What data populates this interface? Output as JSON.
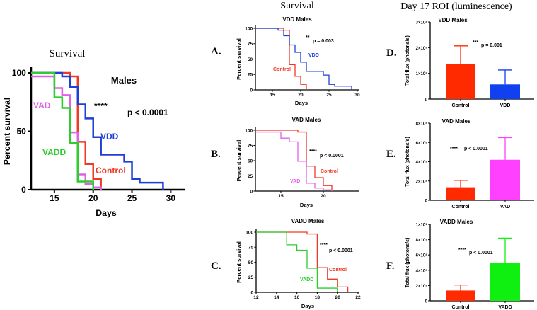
{
  "headers": {
    "left": "Survival",
    "middle": "Survival",
    "right": "Day 17 ROI (luminescence)"
  },
  "panel_letters": [
    "A.",
    "B.",
    "C.",
    "D.",
    "E.",
    "F."
  ],
  "chart_data": [
    {
      "id": "main",
      "type": "line",
      "step": true,
      "title": "Males",
      "xlabel": "Days",
      "ylabel": "Percent survival",
      "xlim": [
        12,
        31.7
      ],
      "ylim": [
        0,
        100
      ],
      "xticks": [
        15,
        20,
        25,
        30
      ],
      "yticks": [
        0,
        50,
        100
      ],
      "stars": "****",
      "pvalue": "p < 0.0001",
      "series": [
        {
          "name": "Control",
          "color": "#ee3a24",
          "points": [
            [
              12,
              100
            ],
            [
              17,
              97
            ],
            [
              18,
              41
            ],
            [
              19,
              22
            ],
            [
              20,
              9
            ],
            [
              21,
              0
            ]
          ]
        },
        {
          "name": "VDD",
          "color": "#1f3fd6",
          "points": [
            [
              12,
              100
            ],
            [
              16,
              97
            ],
            [
              17,
              88
            ],
            [
              18,
              73
            ],
            [
              19,
              61
            ],
            [
              20,
              45
            ],
            [
              21,
              30
            ],
            [
              24,
              24
            ],
            [
              25,
              9
            ],
            [
              26,
              6
            ],
            [
              29,
              0
            ]
          ]
        },
        {
          "name": "VAD",
          "color": "#e060e8",
          "points": [
            [
              12,
              97
            ],
            [
              15,
              87
            ],
            [
              16,
              81
            ],
            [
              17,
              49
            ],
            [
              18,
              13
            ],
            [
              19,
              5
            ],
            [
              20,
              2
            ],
            [
              21,
              0
            ]
          ]
        },
        {
          "name": "VADD",
          "color": "#2ecc2e",
          "points": [
            [
              12,
              100
            ],
            [
              15,
              79
            ],
            [
              16,
              70
            ],
            [
              17,
              40
            ],
            [
              18,
              7
            ],
            [
              20,
              0
            ]
          ]
        }
      ]
    },
    {
      "id": "A",
      "type": "line",
      "step": true,
      "title": "VDD Males",
      "xlabel": "Days",
      "ylabel": "Percent survival",
      "xlim": [
        12,
        30
      ],
      "ylim": [
        0,
        100
      ],
      "xticks": [
        15,
        20,
        25,
        30
      ],
      "yticks": [
        0,
        25,
        50,
        75,
        100
      ],
      "stars": "**",
      "pvalue": "p = 0.003",
      "series": [
        {
          "name": "Control",
          "color": "#ee3a24",
          "points": [
            [
              12,
              100
            ],
            [
              17,
              97
            ],
            [
              18,
              41
            ],
            [
              19,
              22
            ],
            [
              20,
              9
            ],
            [
              21,
              0
            ]
          ]
        },
        {
          "name": "VDD",
          "color": "#1f3fd6",
          "points": [
            [
              12,
              100
            ],
            [
              16,
              97
            ],
            [
              17,
              88
            ],
            [
              18,
              73
            ],
            [
              19,
              61
            ],
            [
              20,
              45
            ],
            [
              21,
              30
            ],
            [
              24,
              24
            ],
            [
              25,
              9
            ],
            [
              26,
              6
            ],
            [
              29,
              0
            ]
          ]
        }
      ]
    },
    {
      "id": "B",
      "type": "line",
      "step": true,
      "title": "VAD Males",
      "xlabel": "Days",
      "ylabel": "Percent survival",
      "xlim": [
        12,
        24
      ],
      "ylim": [
        0,
        100
      ],
      "xticks": [
        15,
        20
      ],
      "yticks": [
        0,
        25,
        50,
        75,
        100
      ],
      "stars": "****",
      "pvalue": "p < 0.0001",
      "series": [
        {
          "name": "Control",
          "color": "#ee3a24",
          "points": [
            [
              12,
              100
            ],
            [
              17,
              97
            ],
            [
              18,
              41
            ],
            [
              19,
              22
            ],
            [
              20,
              9
            ],
            [
              21,
              0
            ]
          ]
        },
        {
          "name": "VAD",
          "color": "#e060e8",
          "points": [
            [
              12,
              97
            ],
            [
              15,
              87
            ],
            [
              16,
              81
            ],
            [
              17,
              49
            ],
            [
              18,
              13
            ],
            [
              19,
              5
            ],
            [
              20,
              2
            ],
            [
              21,
              0
            ]
          ]
        }
      ]
    },
    {
      "id": "C",
      "type": "line",
      "step": true,
      "title": "VADD Males",
      "xlabel": "Days",
      "ylabel": "Percent survival",
      "xlim": [
        12,
        22
      ],
      "ylim": [
        0,
        100
      ],
      "xticks": [
        12,
        14,
        16,
        18,
        20,
        22
      ],
      "yticks": [
        0,
        25,
        50,
        75,
        100
      ],
      "stars": "****",
      "pvalue": "p < 0.0001",
      "series": [
        {
          "name": "Control",
          "color": "#ee3a24",
          "points": [
            [
              12,
              100
            ],
            [
              17,
              97
            ],
            [
              18,
              41
            ],
            [
              19,
              22
            ],
            [
              20,
              9
            ],
            [
              21,
              0
            ]
          ]
        },
        {
          "name": "VADD",
          "color": "#2ecc2e",
          "points": [
            [
              12,
              100
            ],
            [
              15,
              79
            ],
            [
              16,
              70
            ],
            [
              17,
              40
            ],
            [
              18,
              7
            ],
            [
              20,
              0
            ]
          ]
        }
      ]
    },
    {
      "id": "D",
      "type": "bar",
      "title": "VDD Males",
      "ylabel": "Total flux (photons/s)",
      "ylim": [
        0,
        300000000
      ],
      "yticks": [
        0,
        100000000,
        200000000,
        300000000
      ],
      "yticklabels": [
        "0",
        "1×10⁸",
        "2×10⁸",
        "3×10⁸"
      ],
      "categories": [
        "Control",
        "VDD"
      ],
      "values": [
        135000000,
        57000000
      ],
      "error_upper": [
        207000000,
        113000000
      ],
      "colors": [
        "#ff2a00",
        "#1040f0"
      ],
      "stars": "***",
      "pvalue": "p = 0.001"
    },
    {
      "id": "E",
      "type": "bar",
      "title": "VAD Males",
      "ylabel": "Total flux (photons/s)",
      "ylim": [
        0,
        800000000
      ],
      "yticks": [
        0,
        200000000,
        400000000,
        600000000,
        800000000
      ],
      "yticklabels": [
        "0",
        "2×10⁸",
        "4×10⁸",
        "6×10⁸",
        "8×10⁸"
      ],
      "categories": [
        "Control",
        "VAD"
      ],
      "values": [
        135000000,
        420000000
      ],
      "error_upper": [
        207000000,
        650000000
      ],
      "colors": [
        "#ff2a00",
        "#ff40ff"
      ],
      "stars": "****",
      "pvalue": "p < 0.0001"
    },
    {
      "id": "F",
      "type": "bar",
      "title": "VADD Males",
      "ylabel": "Total flux (photons/s)",
      "ylim": [
        0,
        1000000000
      ],
      "yticks": [
        0,
        200000000,
        400000000,
        600000000,
        800000000,
        1000000000
      ],
      "yticklabels": [
        "0",
        "2×10⁸",
        "4×10⁸",
        "6×10⁸",
        "8×10⁸",
        "1×10⁹"
      ],
      "categories": [
        "Control",
        "VADD"
      ],
      "values": [
        135000000,
        495000000
      ],
      "error_upper": [
        207000000,
        820000000
      ],
      "colors": [
        "#ff2a00",
        "#10f010"
      ],
      "stars": "****",
      "pvalue": "p < 0.0001"
    }
  ]
}
